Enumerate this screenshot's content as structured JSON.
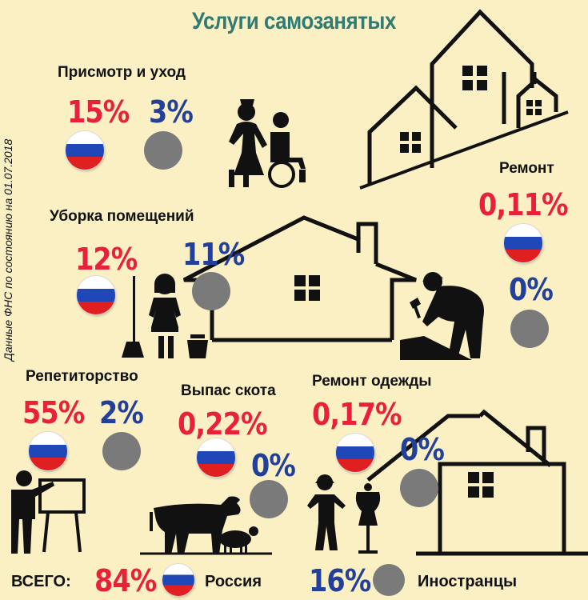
{
  "title": "Услуги самозанятых",
  "source_note": "Данные ФНС по состоянию на 01.07.2018",
  "colors": {
    "background": "#fbf0c4",
    "title": "#2f7a72",
    "russia": "#e8213a",
    "foreigners": "#223f9a",
    "foreign_marker": "#7a7a7a"
  },
  "categories": [
    {
      "name": "Присмотр и уход",
      "russia": "15%",
      "foreigners": "3%"
    },
    {
      "name": "Уборка помещений",
      "russia": "12%",
      "foreigners": "11%"
    },
    {
      "name": "Ремонт",
      "russia": "0,11%",
      "foreigners": "0%"
    },
    {
      "name": "Репетиторство",
      "russia": "55%",
      "foreigners": "2%"
    },
    {
      "name": "Выпас скота",
      "russia": "0,22%",
      "foreigners": "0%"
    },
    {
      "name": "Ремонт одежды",
      "russia": "0,17%",
      "foreigners": "0%"
    }
  ],
  "total": {
    "label": "ВСЕГО:",
    "russia_pct": "84%",
    "russia_label": "Россия",
    "foreigners_pct": "16%",
    "foreigners_label": "Иностранцы"
  },
  "icons": [
    "house-icon",
    "caregiver-wheelchair-icon",
    "cleaner-icon",
    "repairman-icon",
    "teacher-icon",
    "cow-icon",
    "sheep-icon",
    "tailor-icon",
    "russia-flag-icon",
    "foreigner-circle-icon"
  ]
}
